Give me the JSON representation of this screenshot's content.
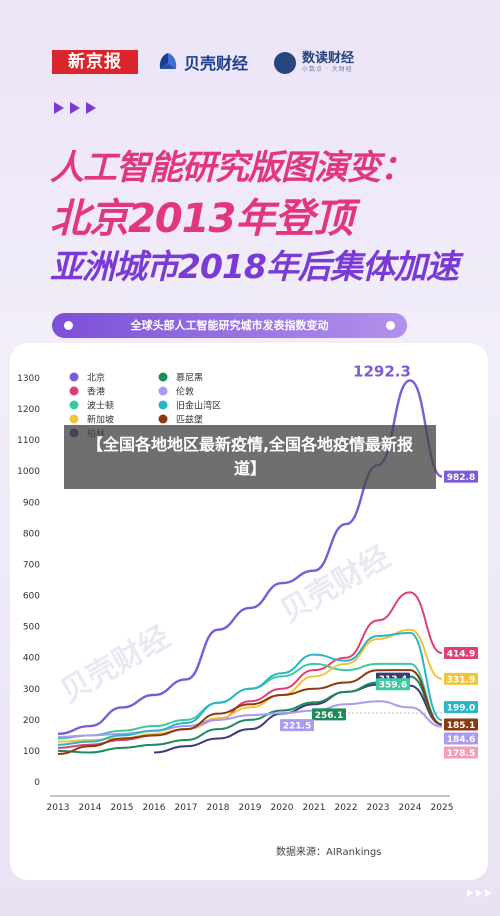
{
  "header": {
    "logo_xinjingbao": "新京报",
    "logo_beike": "贝壳财经",
    "logo_shudu": "数读财经",
    "logo_shudu_sub": "小数点 · 大财经"
  },
  "headline": {
    "line1": "人工智能研究版图演变：",
    "line2": "北京2013年登顶",
    "line3": "亚洲城市2018年后集体加速"
  },
  "subtitle": "全球头部人工智能研究城市发表指数变动",
  "overlay_title": "【全国各地地区最新疫情,全国各地疫情最新报道】",
  "watermark": "贝壳财经",
  "source": "数据来源：AIRankings",
  "colors": {
    "accent": "#e2367d",
    "purple": "#7a3ad6"
  },
  "chart_data": {
    "type": "line",
    "x": [
      2013,
      2014,
      2015,
      2016,
      2017,
      2018,
      2019,
      2020,
      2021,
      2022,
      2023,
      2024,
      2025
    ],
    "ylim": [
      0,
      1300
    ],
    "yticks": [
      0,
      100,
      200,
      300,
      400,
      500,
      600,
      700,
      800,
      900,
      1000,
      1100,
      1200,
      1300
    ],
    "series": [
      {
        "name": "北京",
        "color": "#7b5bd6",
        "values": [
          155,
          180,
          240,
          280,
          330,
          490,
          560,
          640,
          680,
          830,
          1020,
          1292.3,
          982.8
        ]
      },
      {
        "name": "香港",
        "color": "#e0406f",
        "values": [
          110,
          120,
          135,
          150,
          170,
          200,
          260,
          300,
          360,
          400,
          520,
          610,
          414.9
        ]
      },
      {
        "name": "波士顿",
        "color": "#3ec9a0",
        "values": [
          140,
          150,
          165,
          180,
          200,
          255,
          300,
          340,
          380,
          360,
          380,
          380,
          184.6
        ]
      },
      {
        "name": "新加坡",
        "color": "#f1c53b",
        "values": [
          130,
          135,
          140,
          155,
          170,
          205,
          240,
          280,
          340,
          380,
          460,
          490,
          331.9
        ]
      },
      {
        "name": "柏林",
        "color": "#3a3a7a",
        "values": [
          null,
          null,
          null,
          95,
          115,
          140,
          170,
          220,
          250,
          290,
          313.4,
          310,
          185.1
        ]
      },
      {
        "name": "慕尼黑",
        "color": "#1e8b5a",
        "values": [
          100,
          95,
          110,
          120,
          135,
          170,
          200,
          230,
          256.1,
          290,
          320,
          340,
          185.1
        ]
      },
      {
        "name": "伦敦",
        "color": "#a89bf0",
        "values": [
          145,
          150,
          155,
          165,
          180,
          200,
          215,
          221.5,
          230,
          250,
          260,
          240,
          178.5
        ]
      },
      {
        "name": "旧金山湾区",
        "color": "#2ab4c7",
        "values": [
          120,
          130,
          150,
          165,
          190,
          255,
          300,
          350,
          410,
          390,
          470,
          480,
          199.0
        ]
      },
      {
        "name": "匹兹堡",
        "color": "#8a3a12",
        "values": [
          90,
          115,
          140,
          150,
          170,
          220,
          250,
          280,
          300,
          320,
          359.6,
          360,
          185.1
        ]
      }
    ],
    "annotations": [
      {
        "label": "1292.3",
        "x": 2024,
        "y": 1292.3,
        "color": "#7b5bd6"
      },
      {
        "label": "982.8",
        "x": 2025,
        "y": 982.8,
        "color": "#7b5bd6"
      },
      {
        "label": "414.9",
        "x": 2025,
        "y": 414.9,
        "color": "#e0406f"
      },
      {
        "label": "331.9",
        "x": 2025,
        "y": 331.9,
        "color": "#f1c53b"
      },
      {
        "label": "199.0",
        "x": 2025,
        "y": 199.0,
        "color": "#2ab4c7"
      },
      {
        "label": "185.1",
        "x": 2025,
        "y": 185.1,
        "color": "#8a3a12"
      },
      {
        "label": "184.6",
        "x": 2025,
        "y": 184.6,
        "color": "#a89bf0"
      },
      {
        "label": "178.5",
        "x": 2025,
        "y": 178.5,
        "color": "#f3a0b6"
      },
      {
        "label": "313.4",
        "x": 2023,
        "y": 313.4,
        "color": "#3a3a7a"
      },
      {
        "label": "359.6",
        "x": 2023,
        "y": 359.6,
        "color": "#3ec9a0"
      },
      {
        "label": "256.1",
        "x": 2021,
        "y": 256.1,
        "color": "#1e8b5a"
      },
      {
        "label": "221.5",
        "x": 2020,
        "y": 221.5,
        "color": "#a89bf0"
      }
    ]
  }
}
